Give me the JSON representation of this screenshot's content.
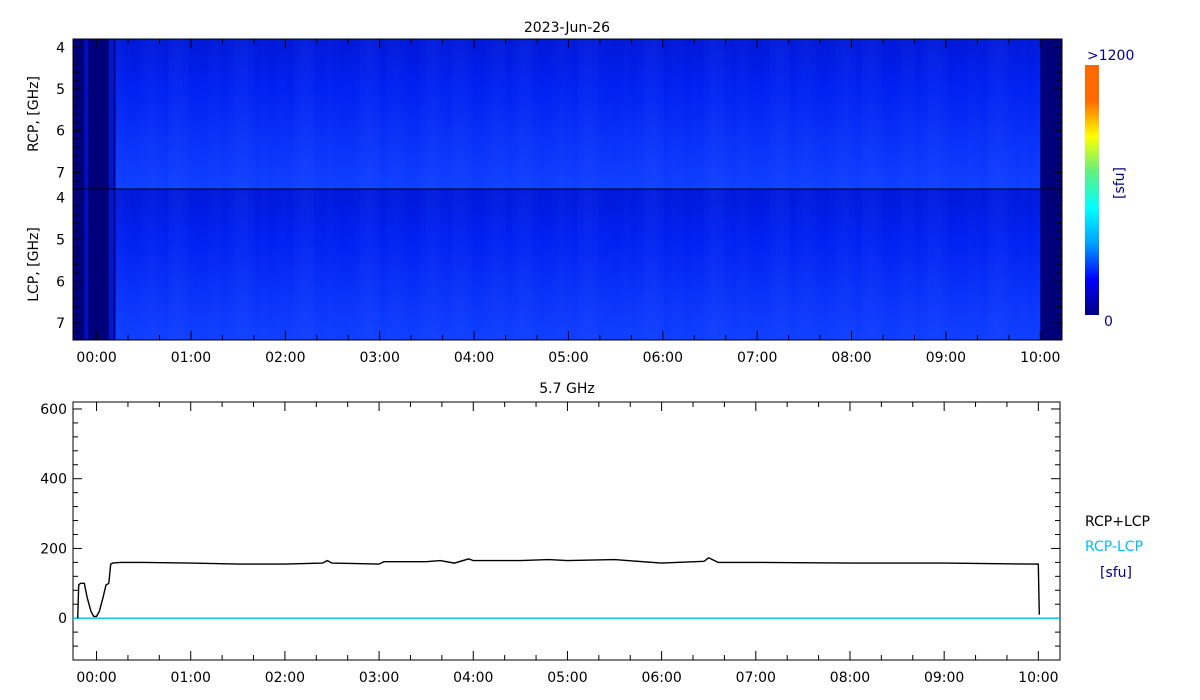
{
  "chart_data": [
    {
      "type": "heatmap",
      "title": "2023-Jun-26",
      "panels": [
        {
          "ylabel": "RCP, [GHz]",
          "ylim": [
            7.4,
            3.8
          ],
          "yticks": [
            "4",
            "5",
            "6",
            "7"
          ]
        },
        {
          "ylabel": "LCP, [GHz]",
          "ylim": [
            7.4,
            3.8
          ],
          "yticks": [
            "4",
            "5",
            "6",
            "7"
          ]
        }
      ],
      "xlim_hours": [
        -0.25,
        10.23
      ],
      "xticks": [
        "00:00",
        "01:00",
        "02:00",
        "03:00",
        "04:00",
        "05:00",
        "06:00",
        "07:00",
        "08:00",
        "09:00",
        "10:00"
      ],
      "colorbar": {
        "max_label": ">1200",
        "min_label": "0",
        "unit": "[sfu]",
        "colors": [
          "#000080",
          "#0000ff",
          "#00a0ff",
          "#00ffff",
          "#60f080",
          "#ffff00",
          "#ff6a00",
          "#ff6a00"
        ]
      },
      "colors": {
        "background_data": "#0a28f0",
        "no_data": "#00007a",
        "low": "#00108a"
      },
      "dark_intervals_hours": [
        [
          -0.25,
          0.2
        ],
        [
          10.0,
          10.23
        ]
      ]
    },
    {
      "type": "line",
      "title": "5.7 GHz",
      "ylim": [
        -120,
        620
      ],
      "yticks": [
        0,
        200,
        400,
        600
      ],
      "xlim_hours": [
        -0.25,
        10.23
      ],
      "xticks": [
        "00:00",
        "01:00",
        "02:00",
        "03:00",
        "04:00",
        "05:00",
        "06:00",
        "07:00",
        "08:00",
        "09:00",
        "10:00"
      ],
      "legend": {
        "placement": "right",
        "entries": [
          "RCP+LCP",
          "RCP-LCP"
        ],
        "unit": "[sfu]"
      },
      "series": [
        {
          "name": "RCP+LCP",
          "color": "#000000",
          "x": [
            -0.2,
            -0.19,
            -0.17,
            -0.13,
            -0.1,
            -0.06,
            -0.03,
            0.0,
            0.03,
            0.07,
            0.1,
            0.13,
            0.15,
            0.17,
            0.25,
            0.5,
            1.0,
            1.5,
            2.0,
            2.4,
            2.45,
            2.5,
            3.0,
            3.05,
            3.5,
            3.65,
            3.8,
            3.95,
            4.0,
            4.5,
            4.8,
            5.0,
            5.5,
            6.0,
            6.45,
            6.5,
            6.6,
            7.0,
            8.0,
            9.0,
            9.95,
            10.0,
            10.01
          ],
          "y": [
            0,
            95,
            100,
            100,
            60,
            20,
            5,
            5,
            20,
            60,
            95,
            100,
            155,
            158,
            160,
            160,
            158,
            155,
            155,
            158,
            165,
            158,
            155,
            162,
            162,
            165,
            158,
            170,
            165,
            165,
            168,
            165,
            168,
            158,
            163,
            173,
            160,
            160,
            158,
            158,
            155,
            155,
            10
          ]
        },
        {
          "name": "RCP-LCP",
          "color": "#00bfff",
          "x": [
            -0.25,
            10.23
          ],
          "y": [
            0,
            0
          ]
        }
      ]
    }
  ]
}
